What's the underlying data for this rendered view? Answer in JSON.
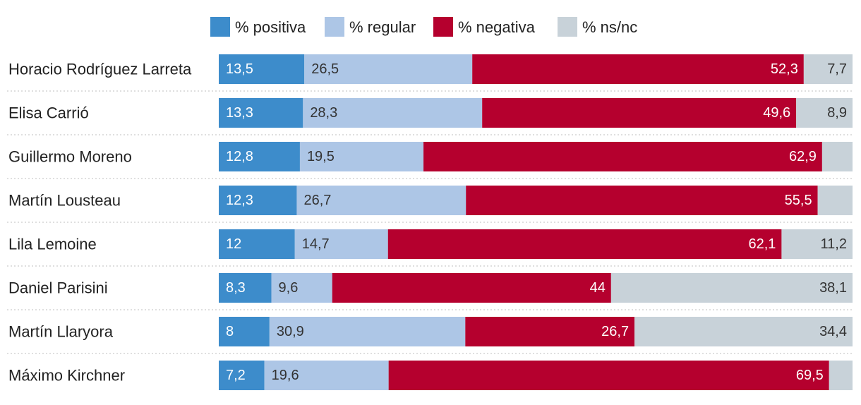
{
  "chart_data": {
    "type": "bar",
    "orientation": "horizontal",
    "stacked": true,
    "normalized_percent": true,
    "legend_position": "top",
    "grid": false,
    "categories": [
      "Horacio Rodríguez Larreta",
      "Elisa Carrió",
      "Guillermo Moreno",
      "Martín Lousteau",
      "Lila Lemoine",
      "Daniel Parisini",
      "Martín Llaryora",
      "Máximo Kirchner"
    ],
    "series": [
      {
        "name": "% positiva",
        "color": "#3d8ccb",
        "values": [
          13.5,
          13.3,
          12.8,
          12.3,
          12,
          8.3,
          8,
          7.2
        ],
        "labels": [
          "13,5",
          "13,3",
          "12,8",
          "12,3",
          "12",
          "8,3",
          "8",
          "7,2"
        ]
      },
      {
        "name": "% regular",
        "color": "#adc6e6",
        "values": [
          26.5,
          28.3,
          19.5,
          26.7,
          14.7,
          9.6,
          30.9,
          19.6
        ],
        "labels": [
          "26,5",
          "28,3",
          "19,5",
          "26,7",
          "14,7",
          "9,6",
          "30,9",
          "19,6"
        ]
      },
      {
        "name": "% negativa",
        "color": "#b5002e",
        "values": [
          52.3,
          49.6,
          62.9,
          55.5,
          62.1,
          44,
          26.7,
          69.5
        ],
        "labels": [
          "52,3",
          "49,6",
          "62,9",
          "55,5",
          "62,1",
          "44",
          "26,7",
          "69,5"
        ]
      },
      {
        "name": "% ns/nc",
        "color": "#c8d2d9",
        "values": [
          7.7,
          8.9,
          4.8,
          5.5,
          11.2,
          38.1,
          34.4,
          3.7
        ],
        "labels": [
          "7,7",
          "8,9",
          "",
          "",
          "11,2",
          "38,1",
          "34,4",
          ""
        ]
      }
    ]
  }
}
